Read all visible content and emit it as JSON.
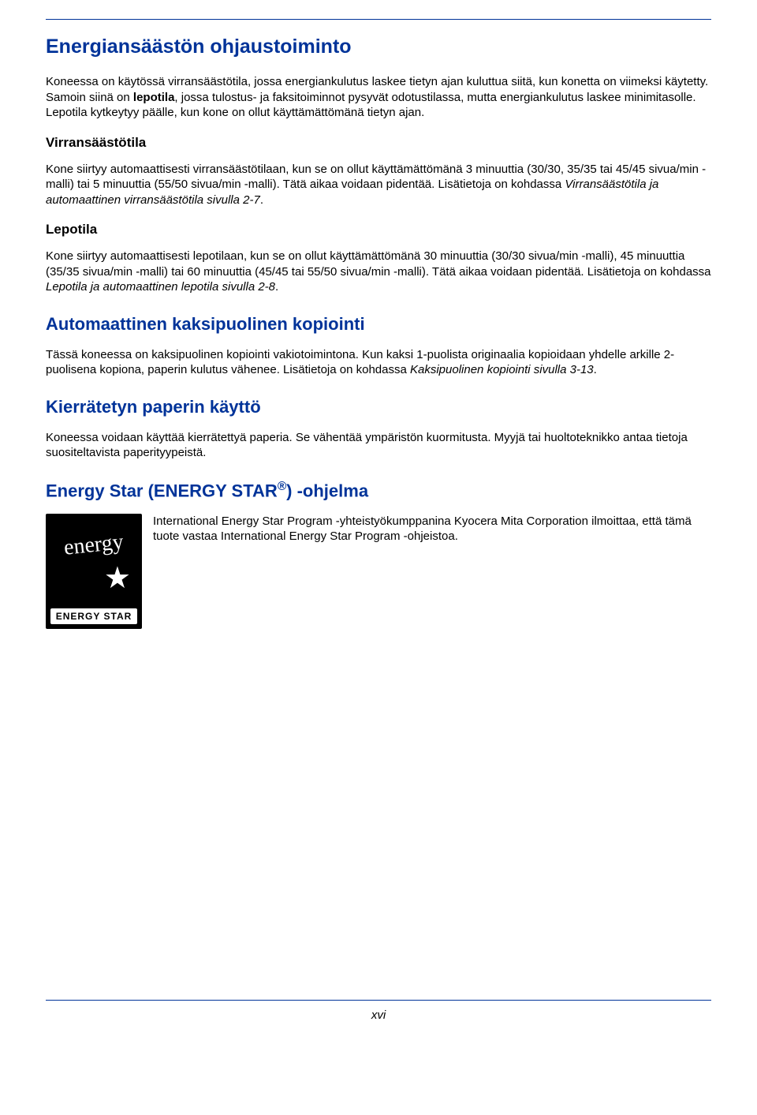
{
  "colors": {
    "heading": "#003399",
    "body_text": "#000000",
    "rule": "#003399",
    "logo_bg": "#000000",
    "logo_fg": "#ffffff"
  },
  "typography": {
    "body_fontsize": 15,
    "h1_fontsize": 25,
    "h2_fontsize": 22,
    "h3_fontsize": 17,
    "font_family": "Arial"
  },
  "h1": "Energiansäästön ohjaustoiminto",
  "p1a": "Koneessa on käytössä virransäästötila, jossa energiankulutus laskee tietyn ajan kuluttua siitä, kun konetta on viimeksi käytetty. Samoin siinä on ",
  "p1b_bold": "lepotila",
  "p1c": ", jossa tulostus- ja faksitoiminnot pysyvät odotustilassa, mutta energiankulutus laskee minimitasolle. Lepotila kytkeytyy päälle, kun kone on ollut käyttämättömänä tietyn ajan.",
  "h3a": "Virransäästötila",
  "p2a": "Kone siirtyy automaattisesti virransäästötilaan, kun se on ollut käyttämättömänä 3 minuuttia (30/30, 35/35 tai 45/45 sivua/min -malli) tai 5 minuuttia (55/50 sivua/min -malli). Tätä aikaa voidaan pidentää. Lisätietoja on kohdassa ",
  "p2b_italic": "Virransäästötila ja automaattinen virransäästötila sivulla 2-7",
  "p2c": ".",
  "h3b": "Lepotila",
  "p3a": "Kone siirtyy automaattisesti lepotilaan, kun se on ollut käyttämättömänä 30 minuuttia (30/30 sivua/min -malli), 45 minuuttia (35/35 sivua/min -malli) tai 60 minuuttia (45/45 tai 55/50 sivua/min -malli). Tätä aikaa voidaan pidentää. Lisätietoja on kohdassa ",
  "p3b_italic": "Lepotila ja automaattinen lepotila sivulla 2-8",
  "p3c": ".",
  "h2a": "Automaattinen kaksipuolinen kopiointi",
  "p4a": "Tässä koneessa on kaksipuolinen kopiointi vakiotoimintona. Kun kaksi 1-puolista originaalia kopioidaan yhdelle arkille 2-puolisena kopiona, paperin kulutus vähenee. Lisätietoja on kohdassa ",
  "p4b_italic": "Kaksipuolinen kopiointi sivulla 3-13",
  "p4c": ".",
  "h2b": "Kierrätetyn paperin käyttö",
  "p5": "Koneessa voidaan käyttää kierrätettyä paperia. Se vähentää ympäristön kuormitusta. Myyjä tai huoltoteknikko antaa tietoja suositeltavista paperityypeistä.",
  "h2c_a": "Energy Star (ENERGY STAR",
  "h2c_sup": "®",
  "h2c_b": ") -ohjelma",
  "logo": {
    "script": "energy",
    "label": "ENERGY STAR"
  },
  "p6": "International Energy Star Program -yhteistyökumppanina Kyocera Mita Corporation ilmoittaa, että tämä tuote vastaa International Energy Star Program -ohjeistoa.",
  "page_number": "xvi"
}
